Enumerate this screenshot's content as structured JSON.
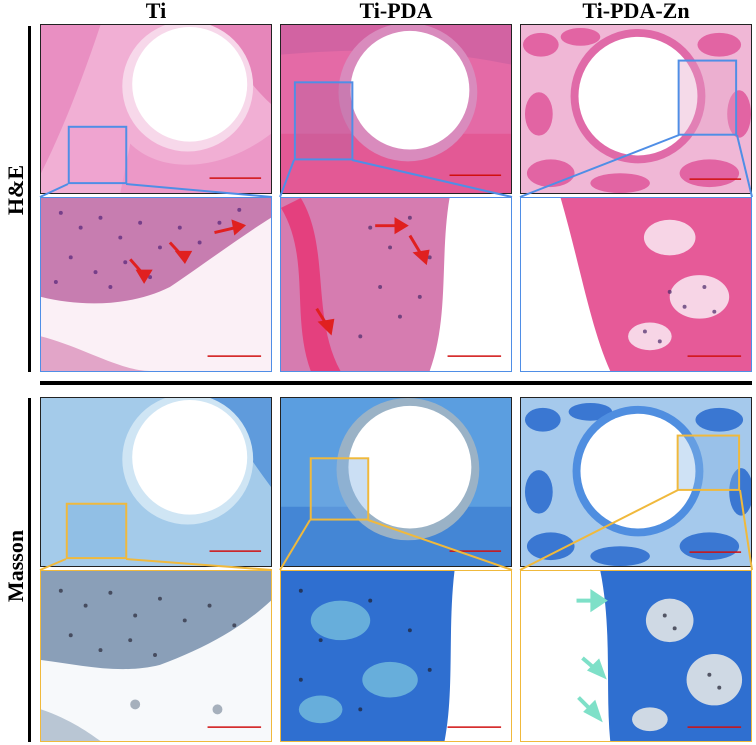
{
  "columns": [
    "Ti",
    "Ti-PDA",
    "Ti-PDA-Zn"
  ],
  "rows": [
    "H&E",
    "Masson"
  ],
  "colors": {
    "he_tissue": "#e98bc4",
    "he_bone": "#e45a92",
    "he_cells": "#5b2a7d",
    "masson_tissue": "#6fa9dc",
    "masson_bone": "#2f6fd0",
    "masson_cells": "#2a2a3a",
    "he_highlight_box": "#4f8ee6",
    "masson_highlight_box": "#f0b93c",
    "arrow_red": "#e02020",
    "arrow_cyan": "#7ee0c8",
    "scale_bar": "#d01010"
  }
}
